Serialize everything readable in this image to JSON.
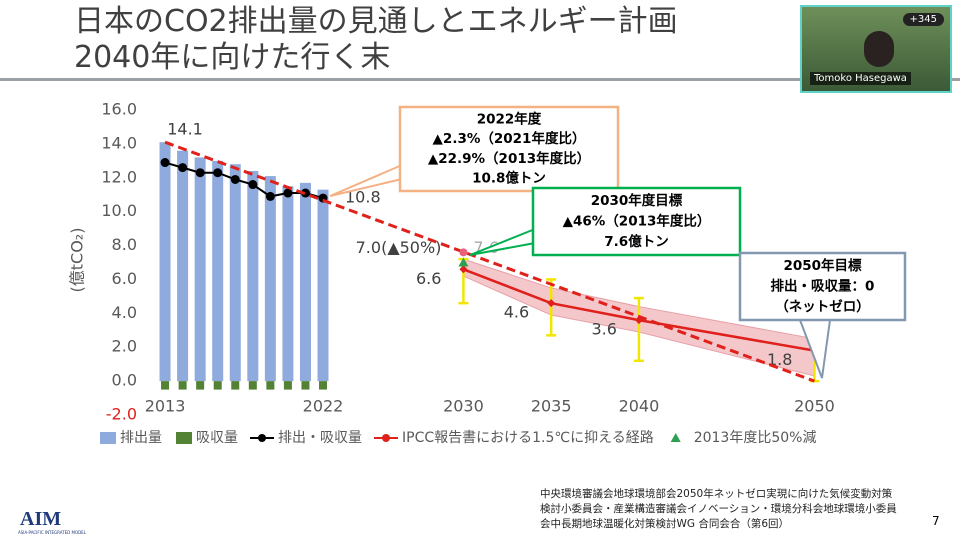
{
  "slide": {
    "title_lines": [
      "日本のCO2排出量の見通しとエネルギー計画",
      "2040年に向けた行く末"
    ],
    "footnote_lines": [
      "中央環境審議会地球環境部会2050年ネットゼロ実現に向けた気候変動対策",
      "検討小委員会・産業構造審議会イノベーション・環境分科会地球環境小委員",
      "会中長期地球温暖化対策検討WG 合同会合（第6回）"
    ],
    "page_number": "7",
    "logo": "AIM",
    "logo_subtitle": "ASIA-PACIFIC INTEGRATED MODEL"
  },
  "video": {
    "name": "Tomoko Hasegawa",
    "participant_count": "+345"
  },
  "chart_data": {
    "type": "combo",
    "y_label": "(億tCO₂)",
    "xlim": [
      2012,
      2051
    ],
    "xticks": [
      2013,
      2022,
      2030,
      2035,
      2040,
      2050
    ],
    "ylim": [
      -2,
      16
    ],
    "yticks": [
      {
        "value": -2,
        "label": "-2.0"
      },
      {
        "value": 0,
        "label": "0.0"
      },
      {
        "value": 2,
        "label": "2.0"
      },
      {
        "value": 4,
        "label": "4.0"
      },
      {
        "value": 6,
        "label": "6.0"
      },
      {
        "value": 8,
        "label": "8.0"
      },
      {
        "value": 10,
        "label": "10.0"
      },
      {
        "value": 12,
        "label": "12.0"
      },
      {
        "value": 14,
        "label": "14.0"
      },
      {
        "value": 16,
        "label": "16.0"
      }
    ],
    "series": [
      {
        "name": "排出量",
        "type": "bar",
        "color": "#8faadc",
        "x": [
          2013,
          2014,
          2015,
          2016,
          2017,
          2018,
          2019,
          2020,
          2021,
          2022
        ],
        "values": [
          14.1,
          13.6,
          13.2,
          13.0,
          12.8,
          12.4,
          12.1,
          11.5,
          11.7,
          11.3
        ],
        "value_labels": [
          "14.1",
          null,
          null,
          null,
          null,
          null,
          null,
          null,
          null,
          null
        ]
      },
      {
        "name": "吸収量",
        "type": "bar",
        "color": "#548235",
        "x": [
          2013,
          2014,
          2015,
          2016,
          2017,
          2018,
          2019,
          2020,
          2021,
          2022
        ],
        "values": [
          -0.5,
          -0.5,
          -0.5,
          -0.5,
          -0.5,
          -0.5,
          -0.5,
          -0.5,
          -0.5,
          -0.5
        ]
      },
      {
        "name": "排出・吸収量",
        "type": "line",
        "color": "#000000",
        "x": [
          2013,
          2014,
          2015,
          2016,
          2017,
          2018,
          2019,
          2020,
          2021,
          2022
        ],
        "values": [
          12.9,
          12.6,
          12.3,
          12.3,
          11.9,
          11.6,
          10.9,
          11.1,
          11.1,
          10.8
        ],
        "value_labels": [
          null,
          null,
          null,
          null,
          null,
          null,
          null,
          null,
          null,
          "10.8"
        ]
      },
      {
        "name": "IPCC報告書における1.5℃に抑える経路",
        "type": "range-line",
        "color": "#e0201b",
        "band_color": "#f4c7cb",
        "error_color": "#f2e600",
        "x": [
          2030,
          2035,
          2040,
          2050
        ],
        "values": [
          6.6,
          4.6,
          3.6,
          1.8
        ],
        "band_low": [
          6.2,
          3.9,
          2.9,
          0.3
        ],
        "band_high": [
          7.2,
          5.5,
          4.4,
          2.5
        ],
        "error_low": [
          4.6,
          2.7,
          1.2,
          0.0
        ],
        "error_high": [
          7.2,
          6.0,
          4.9,
          3.1
        ],
        "value_labels": [
          "6.6",
          "4.6",
          "3.6",
          "1.8"
        ]
      },
      {
        "name": "2013年度比50%減",
        "type": "triangle",
        "color": "#2e9e4f",
        "x": [
          2030
        ],
        "values": [
          7.0
        ],
        "value_labels": [
          "7.0(▲50%)"
        ]
      }
    ],
    "reference_lines": [
      {
        "color": "#e0201b",
        "x": [
          2013,
          2050
        ],
        "values": [
          14.1,
          0
        ]
      }
    ],
    "reference_points": [
      {
        "color": "#e8607a",
        "x": [
          2030
        ],
        "values": [
          7.6
        ],
        "value_labels": [
          "7.6"
        ]
      }
    ],
    "annotations": [
      {
        "border": "#f4b183",
        "lines": [
          "2022年度",
          "▲2.3%（2021年度比）",
          "▲22.9%（2013年度比）",
          "10.8億トン"
        ]
      },
      {
        "border": "#00b050",
        "lines": [
          "2030年度目標",
          "▲46%（2013年度比）",
          "7.6億トン"
        ]
      },
      {
        "border": "#8497b0",
        "lines": [
          "2050年目標",
          "排出・吸収量：0",
          "（ネットゼロ）"
        ]
      }
    ]
  }
}
